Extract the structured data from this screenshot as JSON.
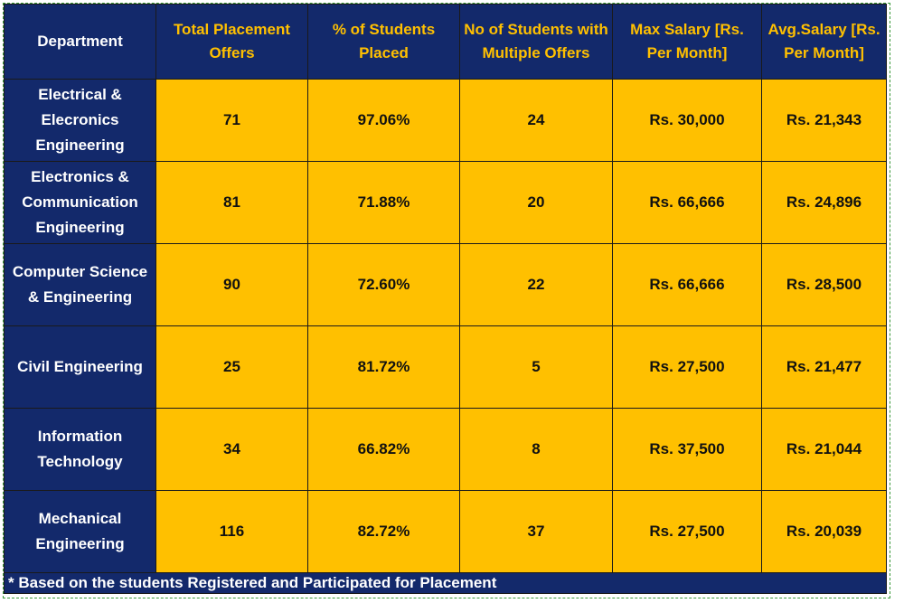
{
  "table": {
    "header": [
      "Department",
      "Total Placement Offers",
      "% of Students Placed",
      "No of Students with Multiple Offers",
      "Max Salary [Rs. Per Month]",
      "Avg.Salary [Rs. Per Month]"
    ],
    "rows": [
      [
        "Electrical & Elecronics Engineering",
        "71",
        "97.06%",
        "24",
        "Rs. 30,000",
        "Rs. 21,343"
      ],
      [
        "Electronics & Communication Engineering",
        "81",
        "71.88%",
        "20",
        "Rs. 66,666",
        "Rs. 24,896"
      ],
      [
        "Computer Science & Engineering",
        "90",
        "72.60%",
        "22",
        "Rs. 66,666",
        "Rs. 28,500"
      ],
      [
        "Civil Engineering",
        "25",
        "81.72%",
        "5",
        "Rs. 27,500",
        "Rs. 21,477"
      ],
      [
        "Information Technology",
        "34",
        "66.82%",
        "8",
        "Rs. 37,500",
        "Rs. 21,044"
      ],
      [
        "Mechanical Engineering",
        "116",
        "82.72%",
        "37",
        "Rs. 27,500",
        "Rs. 20,039"
      ]
    ],
    "footnote": "* Based on the students Registered and Participated for Placement"
  }
}
